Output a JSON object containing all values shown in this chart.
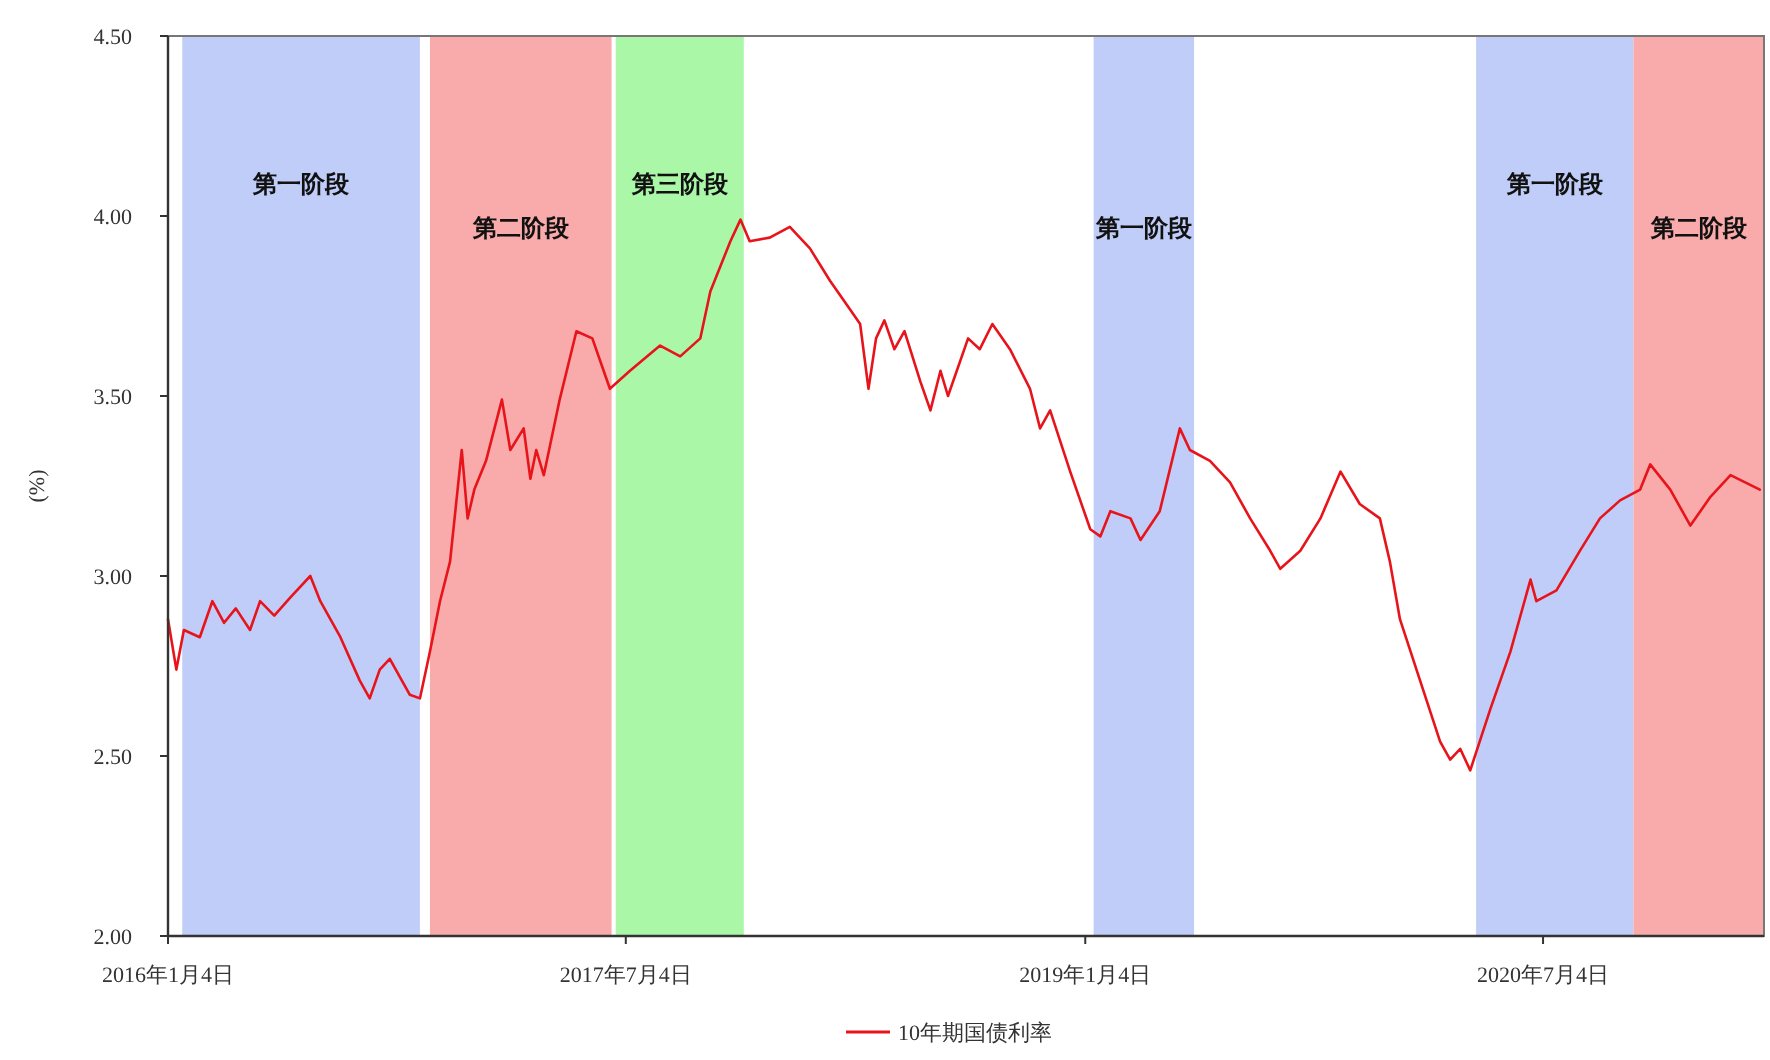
{
  "chart_data": {
    "type": "line",
    "ylabel": "(%)",
    "legend": "bottom",
    "xlim": [
      "2016-01-04",
      "2021-03-25"
    ],
    "xticks": [
      {
        "value": "2016-01-04",
        "label": "2016年1月4日"
      },
      {
        "value": "2017-07-04",
        "label": "2017年7月4日"
      },
      {
        "value": "2019-01-04",
        "label": "2019年1月4日"
      },
      {
        "value": "2020-07-04",
        "label": "2020年7月4日"
      }
    ],
    "ylim": [
      2.0,
      4.5
    ],
    "yticks": [
      {
        "value": 2.0,
        "label": "2.00"
      },
      {
        "value": 2.5,
        "label": "2.50"
      },
      {
        "value": 3.0,
        "label": "3.00"
      },
      {
        "value": 3.5,
        "label": "3.50"
      },
      {
        "value": 4.0,
        "label": "4.00"
      },
      {
        "value": 4.5,
        "label": "4.50"
      }
    ],
    "bands": [
      {
        "axis": "x",
        "from": "2016-01-21",
        "to": "2016-10-31",
        "label": "第一阶段",
        "color": "#c0cdf8"
      },
      {
        "axis": "x",
        "from": "2016-11-12",
        "to": "2017-06-17",
        "label": "第二阶段",
        "color": "#f9aaaa"
      },
      {
        "axis": "x",
        "from": "2017-06-22",
        "to": "2017-11-22",
        "label": "第三阶段",
        "color": "#aaf7a8"
      },
      {
        "axis": "x",
        "from": "2019-01-14",
        "to": "2019-05-14",
        "label": "第一阶段",
        "color": "#c0cdf8"
      },
      {
        "axis": "x",
        "from": "2020-04-15",
        "to": "2020-10-20",
        "label": "第一阶段",
        "color": "#c0cdf8"
      },
      {
        "axis": "x",
        "from": "2020-10-20",
        "to": "2021-03-25",
        "label": "第二阶段",
        "color": "#f9aaaa"
      }
    ],
    "series": [
      {
        "name": "10年期国债利率",
        "color": "#e8141b",
        "x": [
          "2016-01-04",
          "2016-01-14",
          "2016-01-23",
          "2016-02-11",
          "2016-02-26",
          "2016-03-11",
          "2016-03-25",
          "2016-04-11",
          "2016-04-23",
          "2016-05-10",
          "2016-05-29",
          "2016-06-22",
          "2016-07-04",
          "2016-07-28",
          "2016-08-20",
          "2016-09-01",
          "2016-09-13",
          "2016-09-25",
          "2016-10-19",
          "2016-10-31",
          "2016-11-12",
          "2016-11-24",
          "2016-12-06",
          "2016-12-20",
          "2016-12-27",
          "2017-01-04",
          "2017-01-18",
          "2017-02-06",
          "2017-02-16",
          "2017-03-04",
          "2017-03-12",
          "2017-03-19",
          "2017-03-28",
          "2017-04-16",
          "2017-05-06",
          "2017-05-25",
          "2017-06-15",
          "2017-07-09",
          "2017-08-14",
          "2017-09-07",
          "2017-10-01",
          "2017-10-13",
          "2017-11-06",
          "2017-11-18",
          "2017-11-29",
          "2017-12-23",
          "2018-01-16",
          "2018-02-09",
          "2018-03-05",
          "2018-03-29",
          "2018-04-10",
          "2018-04-20",
          "2018-04-29",
          "2018-05-09",
          "2018-05-21",
          "2018-06-02",
          "2018-06-21",
          "2018-07-03",
          "2018-07-15",
          "2018-07-24",
          "2018-08-17",
          "2018-08-31",
          "2018-09-15",
          "2018-10-06",
          "2018-10-30",
          "2018-11-11",
          "2018-11-23",
          "2018-12-17",
          "2019-01-10",
          "2019-01-22",
          "2019-02-03",
          "2019-02-27",
          "2019-03-11",
          "2019-04-03",
          "2019-04-27",
          "2019-05-09",
          "2019-06-02",
          "2019-06-26",
          "2019-07-20",
          "2019-08-13",
          "2019-08-25",
          "2019-09-18",
          "2019-10-12",
          "2019-11-05",
          "2019-11-28",
          "2019-12-22",
          "2020-01-03",
          "2020-01-15",
          "2020-02-08",
          "2020-03-03",
          "2020-03-15",
          "2020-03-27",
          "2020-04-08",
          "2020-05-02",
          "2020-05-26",
          "2020-06-19",
          "2020-06-26",
          "2020-07-20",
          "2020-08-17",
          "2020-09-10",
          "2020-10-04",
          "2020-10-28",
          "2020-11-09",
          "2020-12-03",
          "2020-12-27",
          "2021-01-20",
          "2021-02-13",
          "2021-03-20"
        ],
        "values": [
          2.88,
          2.74,
          2.85,
          2.83,
          2.93,
          2.87,
          2.91,
          2.85,
          2.93,
          2.89,
          2.94,
          3.0,
          2.93,
          2.83,
          2.71,
          2.66,
          2.74,
          2.77,
          2.67,
          2.66,
          2.79,
          2.93,
          3.04,
          3.35,
          3.16,
          3.24,
          3.32,
          3.49,
          3.35,
          3.41,
          3.27,
          3.35,
          3.28,
          3.49,
          3.68,
          3.66,
          3.52,
          3.57,
          3.64,
          3.61,
          3.66,
          3.79,
          3.93,
          3.99,
          3.93,
          3.94,
          3.97,
          3.91,
          3.82,
          3.74,
          3.7,
          3.52,
          3.66,
          3.71,
          3.63,
          3.68,
          3.54,
          3.46,
          3.57,
          3.5,
          3.66,
          3.63,
          3.7,
          3.63,
          3.52,
          3.41,
          3.46,
          3.29,
          3.13,
          3.11,
          3.18,
          3.16,
          3.1,
          3.18,
          3.41,
          3.35,
          3.32,
          3.26,
          3.16,
          3.07,
          3.02,
          3.07,
          3.16,
          3.29,
          3.2,
          3.16,
          3.04,
          2.88,
          2.71,
          2.54,
          2.49,
          2.52,
          2.46,
          2.63,
          2.79,
          2.99,
          2.93,
          2.96,
          3.07,
          3.16,
          3.21,
          3.24,
          3.31,
          3.24,
          3.14,
          3.22,
          3.28,
          3.24
        ]
      }
    ]
  }
}
